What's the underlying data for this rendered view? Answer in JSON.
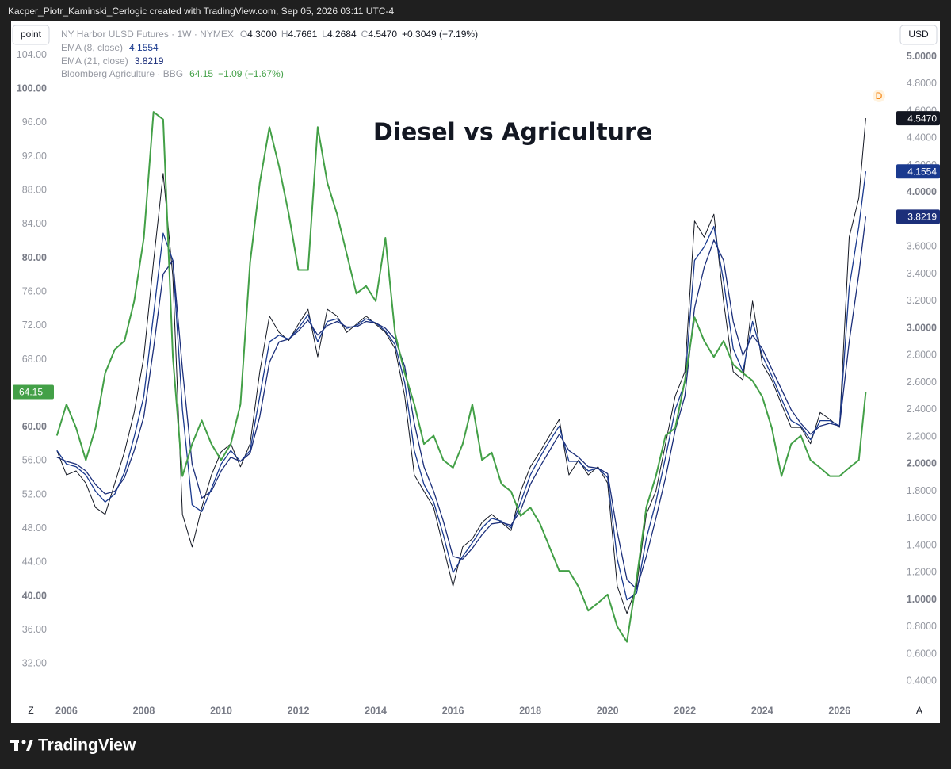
{
  "header": {
    "attribution": "Kacper_Piotr_Kaminski_Cerlogic created with TradingView.com, Sep 05, 2026 03:11 UTC-4"
  },
  "toolbar": {
    "scale_mode": "point",
    "currency": "USD",
    "log_toggle": "Z",
    "auto_toggle": "A"
  },
  "footer": {
    "brand": "TradingView"
  },
  "chart_marker": "D",
  "chart_data": {
    "type": "line",
    "title": "Diesel vs Agriculture",
    "grid": false,
    "xlim": [
      2005.55,
      2027.45
    ],
    "xticks": [
      2006,
      2008,
      2010,
      2012,
      2014,
      2016,
      2018,
      2020,
      2022,
      2024,
      2026
    ],
    "ylim": [
      28,
      108
    ],
    "yticks": [
      {
        "value": 32,
        "label": "32.00"
      },
      {
        "value": 36,
        "label": "36.00"
      },
      {
        "value": 40,
        "label": "40.00"
      },
      {
        "value": 44,
        "label": "44.00"
      },
      {
        "value": 48,
        "label": "48.00"
      },
      {
        "value": 52,
        "label": "52.00"
      },
      {
        "value": 56,
        "label": "56.00"
      },
      {
        "value": 60,
        "label": "60.00"
      },
      {
        "value": 64,
        "label": "64.00"
      },
      {
        "value": 68,
        "label": "68.00"
      },
      {
        "value": 72,
        "label": "72.00"
      },
      {
        "value": 76,
        "label": "76.00"
      },
      {
        "value": 80,
        "label": "80.00"
      },
      {
        "value": 84,
        "label": "84.00"
      },
      {
        "value": 88,
        "label": "88.00"
      },
      {
        "value": 92,
        "label": "92.00"
      },
      {
        "value": 96,
        "label": "96.00"
      },
      {
        "value": 100,
        "label": "100.00"
      },
      {
        "value": 104,
        "label": "104.00"
      }
    ],
    "y2lim": [
      0.28,
      5.26
    ],
    "y2ticks": [
      {
        "value": 0.4,
        "label": "0.4000"
      },
      {
        "value": 0.6,
        "label": "0.6000"
      },
      {
        "value": 0.8,
        "label": "0.8000"
      },
      {
        "value": 1.0,
        "label": "1.0000"
      },
      {
        "value": 1.2,
        "label": "1.2000"
      },
      {
        "value": 1.4,
        "label": "1.4000"
      },
      {
        "value": 1.6,
        "label": "1.6000"
      },
      {
        "value": 1.8,
        "label": "1.8000"
      },
      {
        "value": 2.0,
        "label": "2.0000"
      },
      {
        "value": 2.2,
        "label": "2.2000"
      },
      {
        "value": 2.4,
        "label": "2.4000"
      },
      {
        "value": 2.6,
        "label": "2.6000"
      },
      {
        "value": 2.8,
        "label": "2.8000"
      },
      {
        "value": 3.0,
        "label": "3.0000"
      },
      {
        "value": 3.2,
        "label": "3.2000"
      },
      {
        "value": 3.4,
        "label": "3.4000"
      },
      {
        "value": 3.6,
        "label": "3.6000"
      },
      {
        "value": 3.8,
        "label": "3.8000"
      },
      {
        "value": 4.0,
        "label": "4.0000"
      },
      {
        "value": 4.2,
        "label": "4.2000"
      },
      {
        "value": 4.4,
        "label": "4.4000"
      },
      {
        "value": 4.6,
        "label": "4.6000"
      },
      {
        "value": 4.8,
        "label": "4.8000"
      },
      {
        "value": 5.0,
        "label": "5.0000"
      }
    ],
    "x": [
      2005.75,
      2006.0,
      2006.25,
      2006.5,
      2006.75,
      2007.0,
      2007.25,
      2007.5,
      2007.75,
      2008.0,
      2008.25,
      2008.5,
      2008.75,
      2009.0,
      2009.25,
      2009.5,
      2009.75,
      2010.0,
      2010.25,
      2010.5,
      2010.75,
      2011.0,
      2011.25,
      2011.5,
      2011.75,
      2012.0,
      2012.25,
      2012.5,
      2012.75,
      2013.0,
      2013.25,
      2013.5,
      2013.75,
      2014.0,
      2014.25,
      2014.5,
      2014.75,
      2015.0,
      2015.25,
      2015.5,
      2015.75,
      2016.0,
      2016.25,
      2016.5,
      2016.75,
      2017.0,
      2017.25,
      2017.5,
      2017.75,
      2018.0,
      2018.25,
      2018.5,
      2018.75,
      2019.0,
      2019.25,
      2019.5,
      2019.75,
      2020.0,
      2020.25,
      2020.5,
      2020.75,
      2021.0,
      2021.25,
      2021.5,
      2021.75,
      2022.0,
      2022.25,
      2022.5,
      2022.75,
      2023.0,
      2023.25,
      2023.5,
      2023.75,
      2024.0,
      2024.25,
      2024.5,
      2024.75,
      2025.0,
      2025.25,
      2025.5,
      2025.75,
      2026.0,
      2026.25,
      2026.5,
      2026.68
    ],
    "series": [
      {
        "name": "NY Harbor ULSD Futures · 1W · NYMEX",
        "color": "#131722",
        "axis": "y2",
        "ohlc": [
          {
            "key": "O",
            "value": "4.3000"
          },
          {
            "key": "H",
            "value": "4.7661"
          },
          {
            "key": "L",
            "value": "4.2684"
          },
          {
            "key": "C",
            "value": "4.5470"
          }
        ],
        "change": "+0.3049 (+7.19%)",
        "last": {
          "value": 4.547,
          "label": "4.5470"
        },
        "values": [
          2.1,
          1.92,
          1.95,
          1.86,
          1.68,
          1.63,
          1.86,
          2.09,
          2.38,
          2.79,
          3.49,
          4.14,
          3.38,
          1.63,
          1.39,
          1.68,
          1.92,
          2.09,
          2.15,
          1.98,
          2.15,
          2.68,
          3.09,
          2.97,
          2.91,
          3.03,
          3.14,
          2.79,
          3.14,
          3.09,
          2.97,
          3.03,
          3.09,
          3.03,
          2.97,
          2.85,
          2.5,
          1.92,
          1.8,
          1.68,
          1.39,
          1.1,
          1.39,
          1.45,
          1.57,
          1.63,
          1.57,
          1.51,
          1.8,
          1.98,
          2.09,
          2.21,
          2.33,
          1.92,
          2.03,
          1.92,
          1.98,
          1.86,
          1.1,
          0.9,
          1.1,
          1.63,
          1.8,
          2.15,
          2.5,
          2.68,
          3.79,
          3.67,
          3.84,
          3.2,
          2.68,
          2.62,
          3.2,
          2.74,
          2.62,
          2.44,
          2.27,
          2.27,
          2.15,
          2.38,
          2.33,
          2.27,
          3.67,
          3.96,
          4.547
        ]
      },
      {
        "name": "EMA (8, close)",
        "color": "#1a3a8f",
        "axis": "y2",
        "last": {
          "value": 4.1554,
          "label": "4.1554"
        },
        "values": [
          2.1,
          2.0,
          1.98,
          1.92,
          1.8,
          1.72,
          1.78,
          1.94,
          2.2,
          2.5,
          3.1,
          3.7,
          3.5,
          2.4,
          1.7,
          1.65,
          1.82,
          2.0,
          2.1,
          2.02,
          2.1,
          2.5,
          2.9,
          2.95,
          2.92,
          3.0,
          3.1,
          2.9,
          3.05,
          3.07,
          3.0,
          3.02,
          3.07,
          3.04,
          2.98,
          2.88,
          2.6,
          2.1,
          1.85,
          1.72,
          1.48,
          1.2,
          1.32,
          1.42,
          1.53,
          1.6,
          1.58,
          1.53,
          1.72,
          1.92,
          2.05,
          2.17,
          2.28,
          2.02,
          2.02,
          1.95,
          1.97,
          1.9,
          1.3,
          1.0,
          1.05,
          1.45,
          1.72,
          2.05,
          2.4,
          2.6,
          3.5,
          3.6,
          3.75,
          3.35,
          2.85,
          2.68,
          3.05,
          2.8,
          2.65,
          2.48,
          2.32,
          2.28,
          2.18,
          2.32,
          2.32,
          2.28,
          3.3,
          3.75,
          4.1554
        ]
      },
      {
        "name": "EMA (21, close)",
        "color": "#1c2f7a",
        "axis": "y2",
        "last": {
          "value": 3.8219,
          "label": "3.8219"
        },
        "values": [
          2.05,
          2.02,
          2.0,
          1.95,
          1.85,
          1.78,
          1.8,
          1.9,
          2.1,
          2.35,
          2.85,
          3.4,
          3.5,
          2.7,
          2.0,
          1.75,
          1.8,
          1.95,
          2.05,
          2.02,
          2.08,
          2.35,
          2.75,
          2.9,
          2.92,
          2.98,
          3.06,
          2.95,
          3.02,
          3.05,
          3.01,
          3.01,
          3.05,
          3.04,
          3.0,
          2.92,
          2.72,
          2.3,
          1.98,
          1.8,
          1.58,
          1.32,
          1.3,
          1.38,
          1.48,
          1.56,
          1.57,
          1.55,
          1.66,
          1.85,
          1.98,
          2.1,
          2.22,
          2.1,
          2.05,
          1.98,
          1.97,
          1.93,
          1.5,
          1.15,
          1.08,
          1.32,
          1.6,
          1.9,
          2.25,
          2.5,
          3.15,
          3.45,
          3.65,
          3.5,
          3.05,
          2.8,
          2.95,
          2.85,
          2.7,
          2.55,
          2.4,
          2.3,
          2.22,
          2.28,
          2.3,
          2.28,
          2.9,
          3.4,
          3.8219
        ]
      },
      {
        "name": "Bloomberg Agriculture · BBG",
        "color": "#43a047",
        "change": "−1.09 (−1.67%)",
        "last": {
          "value": 64.15,
          "label": "64.15"
        },
        "values": [
          59,
          62.7,
          59.9,
          56.1,
          59.9,
          66.4,
          69.2,
          70.2,
          74.9,
          82.4,
          97.3,
          96.4,
          68.3,
          54.2,
          58,
          60.8,
          58,
          56.1,
          58,
          62.7,
          79.5,
          88.9,
          95.5,
          90.8,
          85.2,
          78.6,
          78.6,
          95.5,
          88.9,
          85.2,
          80.5,
          75.8,
          76.7,
          74.9,
          82.4,
          71.1,
          66.4,
          62.7,
          58,
          59,
          56.1,
          55.2,
          58,
          62.7,
          56.1,
          57,
          53.3,
          52.4,
          49.5,
          50.5,
          48.6,
          45.8,
          43,
          43,
          41.1,
          38.3,
          39.2,
          40.2,
          36.4,
          34.6,
          42,
          50.5,
          54.2,
          59,
          59.9,
          65.5,
          73,
          70.2,
          68.3,
          70.2,
          67.4,
          66.4,
          65.5,
          63.6,
          59.9,
          54.2,
          58,
          59,
          56.1,
          55.2,
          54.2,
          54.2,
          55.2,
          56.1,
          64.15
        ]
      }
    ]
  }
}
